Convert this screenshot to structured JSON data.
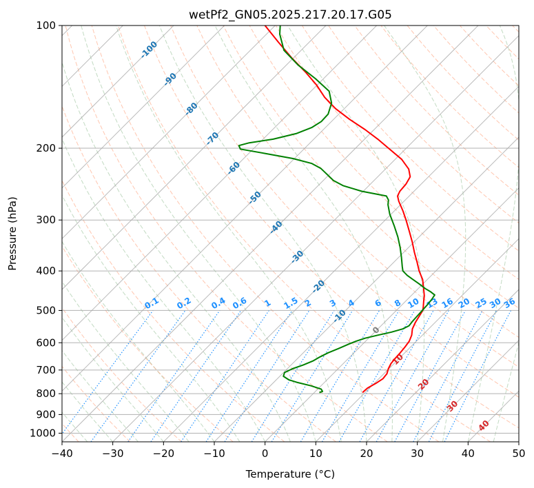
{
  "chart_data": {
    "type": "line",
    "title": "wetPf2_GN05.2025.217.20.17.G05",
    "xlabel": "Temperature (°C)",
    "ylabel": "Pressure (hPa)",
    "xlim": [
      -40,
      50
    ],
    "ylim": [
      1050,
      100
    ],
    "y_scale": "log",
    "skew": 45,
    "grid": true,
    "x_ticks": [
      -40,
      -30,
      -20,
      -10,
      0,
      10,
      20,
      30,
      40,
      50
    ],
    "y_ticks": [
      100,
      200,
      300,
      400,
      500,
      600,
      700,
      800,
      900,
      1000
    ],
    "colors": {
      "temperature": "#ff0000",
      "dewpoint": "#008000",
      "isotherm_label": "#1f77b4",
      "mixing_ratio": "#1e90ff",
      "dry_adiabat": "#ffa07a",
      "moist_adiabat": "#8fbc8f",
      "grid": "#a9a9a9"
    },
    "series": [
      {
        "role": "temperature",
        "points": [
          [
            795,
            9.5
          ],
          [
            775,
            9.6
          ],
          [
            755,
            10.3
          ],
          [
            735,
            10.8
          ],
          [
            715,
            10.6
          ],
          [
            695,
            9.9
          ],
          [
            675,
            9.4
          ],
          [
            655,
            9.2
          ],
          [
            635,
            9.1
          ],
          [
            615,
            8.9
          ],
          [
            595,
            8.6
          ],
          [
            575,
            7.9
          ],
          [
            555,
            6.8
          ],
          [
            535,
            6.1
          ],
          [
            515,
            5.6
          ],
          [
            500,
            5.2
          ],
          [
            490,
            4.6
          ],
          [
            475,
            3.6
          ],
          [
            460,
            2.6
          ],
          [
            440,
            0.9
          ],
          [
            420,
            -0.9
          ],
          [
            400,
            -3.3
          ],
          [
            380,
            -5.5
          ],
          [
            360,
            -7.9
          ],
          [
            340,
            -10.3
          ],
          [
            320,
            -13.0
          ],
          [
            300,
            -15.9
          ],
          [
            285,
            -18.3
          ],
          [
            270,
            -21.0
          ],
          [
            262,
            -22.3
          ],
          [
            255,
            -22.8
          ],
          [
            245,
            -23.0
          ],
          [
            235,
            -23.6
          ],
          [
            225,
            -25.4
          ],
          [
            213,
            -28.7
          ],
          [
            200,
            -33.5
          ],
          [
            190,
            -37.4
          ],
          [
            180,
            -41.8
          ],
          [
            170,
            -46.8
          ],
          [
            160,
            -51.7
          ],
          [
            150,
            -56.1
          ],
          [
            140,
            -60.1
          ],
          [
            130,
            -64.9
          ],
          [
            120,
            -70.4
          ],
          [
            110,
            -76.0
          ],
          [
            100,
            -82.0
          ]
        ]
      },
      {
        "role": "dewpoint",
        "points": [
          [
            795,
            1.0
          ],
          [
            790,
            1.4
          ],
          [
            780,
            0.7
          ],
          [
            765,
            -2.0
          ],
          [
            750,
            -5.5
          ],
          [
            740,
            -7.5
          ],
          [
            725,
            -9.3
          ],
          [
            710,
            -9.8
          ],
          [
            695,
            -9.0
          ],
          [
            680,
            -7.6
          ],
          [
            665,
            -6.5
          ],
          [
            650,
            -5.9
          ],
          [
            635,
            -5.1
          ],
          [
            620,
            -3.9
          ],
          [
            605,
            -2.8
          ],
          [
            595,
            -1.9
          ],
          [
            585,
            -0.7
          ],
          [
            575,
            1.2
          ],
          [
            565,
            3.3
          ],
          [
            555,
            4.9
          ],
          [
            545,
            5.5
          ],
          [
            530,
            5.3
          ],
          [
            515,
            5.2
          ],
          [
            500,
            5.1
          ],
          [
            485,
            5.0
          ],
          [
            470,
            4.8
          ],
          [
            458,
            4.5
          ],
          [
            450,
            3.1
          ],
          [
            442,
            1.4
          ],
          [
            430,
            -0.8
          ],
          [
            420,
            -2.8
          ],
          [
            410,
            -4.8
          ],
          [
            400,
            -6.5
          ],
          [
            390,
            -7.5
          ],
          [
            370,
            -9.5
          ],
          [
            350,
            -11.7
          ],
          [
            330,
            -14.2
          ],
          [
            310,
            -17.1
          ],
          [
            290,
            -20.3
          ],
          [
            275,
            -22.5
          ],
          [
            268,
            -23.3
          ],
          [
            262,
            -24.5
          ],
          [
            255,
            -30.3
          ],
          [
            247,
            -35.1
          ],
          [
            240,
            -38.0
          ],
          [
            232,
            -40.4
          ],
          [
            224,
            -42.9
          ],
          [
            218,
            -45.6
          ],
          [
            212,
            -50.3
          ],
          [
            206,
            -56.8
          ],
          [
            201,
            -62.5
          ],
          [
            197,
            -63.5
          ],
          [
            194,
            -62.0
          ],
          [
            190,
            -58.0
          ],
          [
            184,
            -54.5
          ],
          [
            178,
            -52.7
          ],
          [
            172,
            -52.0
          ],
          [
            165,
            -52.1
          ],
          [
            155,
            -53.6
          ],
          [
            145,
            -56.4
          ],
          [
            135,
            -61.6
          ],
          [
            125,
            -67.7
          ],
          [
            115,
            -73.4
          ],
          [
            105,
            -77.4
          ],
          [
            100,
            -79.0
          ]
        ]
      }
    ],
    "isotherm_labels": [
      "-100",
      "-90",
      "-80",
      "-70",
      "-60",
      "-50",
      "-40",
      "-30",
      "-20",
      "-10"
    ],
    "isotherm_label_temps": [
      -100,
      -90,
      -80,
      -70,
      -60,
      -50,
      -40,
      -30,
      -20,
      -10
    ],
    "mixing_ratio_labels": [
      "0.1",
      "0.2",
      "0.4",
      "0.6",
      "1",
      "1.5",
      "2",
      "3",
      "4",
      "6",
      "8",
      "10",
      "13",
      "16",
      "20",
      "25",
      "30",
      "36"
    ],
    "mixing_ratio_values": [
      0.1,
      0.2,
      0.4,
      0.6,
      1,
      1.5,
      2,
      3,
      4,
      6,
      8,
      10,
      13,
      16,
      20,
      25,
      30,
      36
    ],
    "warm_isotherm_labels": [
      "0",
      "10",
      "20",
      "30",
      "40"
    ],
    "warm_isotherm_temps": [
      0,
      10,
      20,
      30,
      40
    ]
  }
}
